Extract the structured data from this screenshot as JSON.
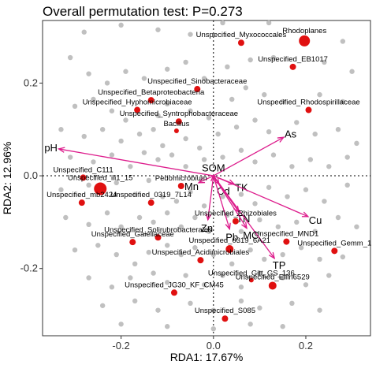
{
  "chart_data": {
    "type": "scatter",
    "title": "Overall permutation test: P=0.273",
    "xlabel": "RDA1: 17.67%",
    "ylabel": "RDA2: 12.96%",
    "xlim": [
      -0.37,
      0.34
    ],
    "ylim": [
      -0.345,
      0.335
    ],
    "x_ticks": [
      -0.2,
      0.0,
      0.2
    ],
    "x_tick_labels": [
      "-0.2",
      "0.0",
      "0.2"
    ],
    "y_ticks": [
      -0.2,
      0.0,
      0.2
    ],
    "y_tick_labels": [
      "-0.2",
      "0.0",
      "0.2"
    ],
    "colors": {
      "background_points": "#c0c0c0",
      "highlight_points": "#e01010",
      "arrows": "#dd1c8c"
    },
    "env_vectors": [
      {
        "name": "pH",
        "x": -0.335,
        "y": 0.058
      },
      {
        "name": "As",
        "x": 0.152,
        "y": 0.083
      },
      {
        "name": "SOM",
        "x": 0.0,
        "y": 0.001
      },
      {
        "name": "Mn",
        "x": -0.032,
        "y": -0.015
      },
      {
        "name": "Cd",
        "x": 0.012,
        "y": -0.018
      },
      {
        "name": "TK",
        "x": 0.045,
        "y": -0.018
      },
      {
        "name": "Zn",
        "x": -0.012,
        "y": -0.095
      },
      {
        "name": "TN",
        "x": 0.055,
        "y": -0.078
      },
      {
        "name": "Cu",
        "x": 0.205,
        "y": -0.088
      },
      {
        "name": "MC",
        "x": 0.072,
        "y": -0.113
      },
      {
        "name": "Pb",
        "x": 0.035,
        "y": -0.115
      },
      {
        "name": "TP",
        "x": 0.132,
        "y": -0.178
      }
    ],
    "highlighted_taxa": [
      {
        "name": "Rhodoplanes",
        "x": 0.197,
        "y": 0.291,
        "size": 7
      },
      {
        "name": "Unspecified_Myxococcales",
        "x": 0.06,
        "y": 0.287,
        "size": 4
      },
      {
        "name": "Unspecified_EB1017",
        "x": 0.172,
        "y": 0.235,
        "size": 4
      },
      {
        "name": "Unspecified_Sinobacteraceae",
        "x": -0.035,
        "y": 0.187,
        "size": 4
      },
      {
        "name": "Unspecified_Betaproteobacteria",
        "x": -0.135,
        "y": 0.163,
        "size": 4
      },
      {
        "name": "Unspecified_Hyphomicrobiaceae",
        "x": -0.165,
        "y": 0.142,
        "size": 4
      },
      {
        "name": "Unspecified_Rhodospirillaceae",
        "x": 0.206,
        "y": 0.142,
        "size": 4
      },
      {
        "name": "Unspecified_Syntrophobacteraceae",
        "x": -0.075,
        "y": 0.117,
        "size": 4
      },
      {
        "name": "Bacillus",
        "x": -0.08,
        "y": 0.097,
        "size": 3
      },
      {
        "name": "Unspecified_C111",
        "x": -0.282,
        "y": -0.004,
        "size": 4
      },
      {
        "name": "Unspecified_iii1_15",
        "x": -0.245,
        "y": -0.028,
        "size": 8
      },
      {
        "name": "Pedomicrobium",
        "x": -0.07,
        "y": -0.022,
        "size": 4
      },
      {
        "name": "Unspecified_mb2424",
        "x": -0.285,
        "y": -0.058,
        "size": 4
      },
      {
        "name": "Unspecified_0319_7L14",
        "x": -0.135,
        "y": -0.058,
        "size": 4
      },
      {
        "name": "Unspecified_Rhizobiales",
        "x": 0.048,
        "y": -0.098,
        "size": 4
      },
      {
        "name": "Unspecified_Solirubrobacterales",
        "x": -0.12,
        "y": -0.133,
        "size": 4
      },
      {
        "name": "Unspecified_MND1",
        "x": 0.158,
        "y": -0.142,
        "size": 4
      },
      {
        "name": "Unspecified_Gaiellaceae",
        "x": -0.175,
        "y": -0.143,
        "size": 4
      },
      {
        "name": "Unspecified_0319_6A21",
        "x": 0.035,
        "y": -0.158,
        "size": 5
      },
      {
        "name": "Unspecified_Gemm_1",
        "x": 0.262,
        "y": -0.162,
        "size": 4
      },
      {
        "name": "Unspecified_Acidimicrobiales",
        "x": -0.028,
        "y": -0.182,
        "size": 4
      },
      {
        "name": "Unspecified_Gitt_GS_136",
        "x": 0.082,
        "y": -0.225,
        "size": 3
      },
      {
        "name": "Unspecified_Ellin6529",
        "x": 0.128,
        "y": -0.237,
        "size": 5
      },
      {
        "name": "Unspecified_JG30_KF_CM45",
        "x": -0.085,
        "y": -0.252,
        "size": 4
      },
      {
        "name": "Unspecified_S085",
        "x": 0.025,
        "y": -0.308,
        "size": 4
      }
    ],
    "background_points": [
      [
        -0.31,
        0.255
      ],
      [
        -0.28,
        0.31
      ],
      [
        -0.2,
        0.325
      ],
      [
        -0.12,
        0.315
      ],
      [
        -0.05,
        0.305
      ],
      [
        0.02,
        0.33
      ],
      [
        0.12,
        0.33
      ],
      [
        0.28,
        0.29
      ],
      [
        -0.27,
        0.22
      ],
      [
        -0.23,
        0.2
      ],
      [
        -0.19,
        0.225
      ],
      [
        -0.15,
        0.21
      ],
      [
        -0.1,
        0.23
      ],
      [
        -0.06,
        0.245
      ],
      [
        -0.02,
        0.21
      ],
      [
        0.03,
        0.235
      ],
      [
        0.08,
        0.25
      ],
      [
        0.13,
        0.255
      ],
      [
        0.24,
        0.245
      ],
      [
        0.3,
        0.225
      ],
      [
        -0.3,
        0.15
      ],
      [
        -0.26,
        0.165
      ],
      [
        -0.22,
        0.14
      ],
      [
        -0.19,
        0.12
      ],
      [
        -0.12,
        0.13
      ],
      [
        -0.1,
        0.155
      ],
      [
        -0.05,
        0.14
      ],
      [
        -0.01,
        0.125
      ],
      [
        0.04,
        0.165
      ],
      [
        0.07,
        0.19
      ],
      [
        0.11,
        0.175
      ],
      [
        0.15,
        0.16
      ],
      [
        0.23,
        0.175
      ],
      [
        0.28,
        0.16
      ],
      [
        -0.33,
        0.1
      ],
      [
        -0.28,
        0.085
      ],
      [
        -0.24,
        0.1
      ],
      [
        -0.2,
        0.075
      ],
      [
        -0.16,
        0.09
      ],
      [
        -0.13,
        0.1
      ],
      [
        -0.11,
        0.065
      ],
      [
        -0.06,
        0.08
      ],
      [
        -0.03,
        0.06
      ],
      [
        0.01,
        0.09
      ],
      [
        0.05,
        0.105
      ],
      [
        0.09,
        0.12
      ],
      [
        0.12,
        0.095
      ],
      [
        0.18,
        0.115
      ],
      [
        0.22,
        0.09
      ],
      [
        0.27,
        0.1
      ],
      [
        0.31,
        0.07
      ],
      [
        -0.31,
        0.04
      ],
      [
        -0.26,
        0.03
      ],
      [
        -0.22,
        0.045
      ],
      [
        -0.18,
        0.02
      ],
      [
        -0.15,
        0.05
      ],
      [
        -0.12,
        0.035
      ],
      [
        -0.09,
        0.045
      ],
      [
        -0.06,
        0.02
      ],
      [
        -0.02,
        0.035
      ],
      [
        0.02,
        0.04
      ],
      [
        0.06,
        0.055
      ],
      [
        0.09,
        0.03
      ],
      [
        0.13,
        0.045
      ],
      [
        0.17,
        0.02
      ],
      [
        0.21,
        0.035
      ],
      [
        0.25,
        0.02
      ],
      [
        0.29,
        0.04
      ],
      [
        -0.33,
        -0.03
      ],
      [
        -0.27,
        -0.02
      ],
      [
        -0.21,
        -0.015
      ],
      [
        -0.17,
        -0.04
      ],
      [
        -0.14,
        -0.01
      ],
      [
        -0.11,
        -0.045
      ],
      [
        -0.08,
        -0.055
      ],
      [
        -0.05,
        -0.035
      ],
      [
        -0.02,
        -0.065
      ],
      [
        0.02,
        -0.045
      ],
      [
        0.06,
        -0.04
      ],
      [
        0.09,
        -0.06
      ],
      [
        0.12,
        -0.025
      ],
      [
        0.16,
        -0.045
      ],
      [
        0.2,
        -0.03
      ],
      [
        0.24,
        -0.055
      ],
      [
        0.29,
        -0.02
      ],
      [
        -0.32,
        -0.09
      ],
      [
        -0.27,
        -0.105
      ],
      [
        -0.23,
        -0.08
      ],
      [
        -0.2,
        -0.11
      ],
      [
        -0.16,
        -0.09
      ],
      [
        -0.13,
        -0.1
      ],
      [
        -0.1,
        -0.08
      ],
      [
        -0.07,
        -0.11
      ],
      [
        -0.04,
        -0.09
      ],
      [
        -0.01,
        -0.12
      ],
      [
        0.03,
        -0.085
      ],
      [
        0.06,
        -0.12
      ],
      [
        0.1,
        -0.095
      ],
      [
        0.14,
        -0.11
      ],
      [
        0.18,
        -0.1
      ],
      [
        0.22,
        -0.12
      ],
      [
        0.27,
        -0.09
      ],
      [
        0.31,
        -0.11
      ],
      [
        -0.3,
        -0.16
      ],
      [
        -0.25,
        -0.15
      ],
      [
        -0.21,
        -0.17
      ],
      [
        -0.17,
        -0.19
      ],
      [
        -0.14,
        -0.165
      ],
      [
        -0.1,
        -0.15
      ],
      [
        -0.07,
        -0.17
      ],
      [
        -0.04,
        -0.155
      ],
      [
        0.0,
        -0.17
      ],
      [
        0.04,
        -0.19
      ],
      [
        0.08,
        -0.16
      ],
      [
        0.11,
        -0.18
      ],
      [
        0.15,
        -0.17
      ],
      [
        0.19,
        -0.155
      ],
      [
        0.23,
        -0.18
      ],
      [
        0.28,
        -0.175
      ],
      [
        -0.27,
        -0.22
      ],
      [
        -0.22,
        -0.24
      ],
      [
        -0.18,
        -0.22
      ],
      [
        -0.13,
        -0.21
      ],
      [
        -0.1,
        -0.23
      ],
      [
        -0.06,
        -0.215
      ],
      [
        -0.02,
        -0.235
      ],
      [
        0.02,
        -0.215
      ],
      [
        0.06,
        -0.24
      ],
      [
        0.1,
        -0.21
      ],
      [
        0.15,
        -0.22
      ],
      [
        0.2,
        -0.235
      ],
      [
        0.25,
        -0.215
      ],
      [
        -0.24,
        -0.28
      ],
      [
        -0.17,
        -0.27
      ],
      [
        -0.12,
        -0.29
      ],
      [
        -0.05,
        -0.275
      ],
      [
        0.0,
        -0.29
      ],
      [
        0.06,
        -0.27
      ],
      [
        0.1,
        -0.285
      ],
      [
        0.17,
        -0.275
      ],
      [
        0.23,
        -0.29
      ],
      [
        -0.2,
        -0.32
      ],
      [
        -0.1,
        -0.325
      ],
      [
        0.0,
        -0.33
      ],
      [
        0.08,
        -0.32
      ],
      [
        0.15,
        -0.325
      ]
    ]
  }
}
